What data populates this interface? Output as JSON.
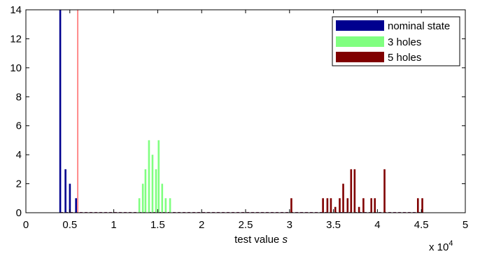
{
  "chart_data": {
    "type": "bar",
    "xlabel_main": "test value ",
    "xlabel_var": "s",
    "x_multiplier_base": "x 10",
    "x_multiplier_exp": "4",
    "xlim": [
      0,
      5
    ],
    "ylim": [
      0,
      14
    ],
    "xticks": [
      0,
      0.5,
      1,
      1.5,
      2,
      2.5,
      3,
      3.5,
      4,
      4.5,
      5
    ],
    "yticks": [
      0,
      2,
      4,
      6,
      8,
      10,
      12,
      14
    ],
    "threshold_line": {
      "x": 0.59,
      "color": "#ff6666"
    },
    "legend_position": "top-right",
    "series": [
      {
        "name": "nominal state",
        "color": "#00008f",
        "range": [
          0.39,
          0.58
        ],
        "bars": [
          {
            "x": 0.39,
            "y": 14
          },
          {
            "x": 0.45,
            "y": 3
          },
          {
            "x": 0.5,
            "y": 2
          },
          {
            "x": 0.57,
            "y": 1
          }
        ]
      },
      {
        "name": "3 holes",
        "color": "#80ff80",
        "range": [
          1.29,
          1.64
        ],
        "bars": [
          {
            "x": 1.29,
            "y": 1
          },
          {
            "x": 1.33,
            "y": 2
          },
          {
            "x": 1.36,
            "y": 3
          },
          {
            "x": 1.4,
            "y": 5
          },
          {
            "x": 1.44,
            "y": 4
          },
          {
            "x": 1.48,
            "y": 3
          },
          {
            "x": 1.51,
            "y": 5
          },
          {
            "x": 1.55,
            "y": 2
          },
          {
            "x": 1.59,
            "y": 1
          },
          {
            "x": 1.64,
            "y": 1
          }
        ]
      },
      {
        "name": "5 holes",
        "color": "#800000",
        "range": [
          3.0,
          4.52
        ],
        "bars": [
          {
            "x": 3.02,
            "y": 1
          },
          {
            "x": 3.38,
            "y": 1
          },
          {
            "x": 3.43,
            "y": 1
          },
          {
            "x": 3.47,
            "y": 1
          },
          {
            "x": 3.52,
            "y": 0.4
          },
          {
            "x": 3.57,
            "y": 1
          },
          {
            "x": 3.61,
            "y": 2
          },
          {
            "x": 3.66,
            "y": 1
          },
          {
            "x": 3.7,
            "y": 3
          },
          {
            "x": 3.74,
            "y": 3
          },
          {
            "x": 3.79,
            "y": 0.4
          },
          {
            "x": 3.84,
            "y": 1
          },
          {
            "x": 3.93,
            "y": 1
          },
          {
            "x": 3.97,
            "y": 1
          },
          {
            "x": 4.08,
            "y": 3
          },
          {
            "x": 4.46,
            "y": 1
          },
          {
            "x": 4.51,
            "y": 1
          }
        ]
      }
    ]
  }
}
